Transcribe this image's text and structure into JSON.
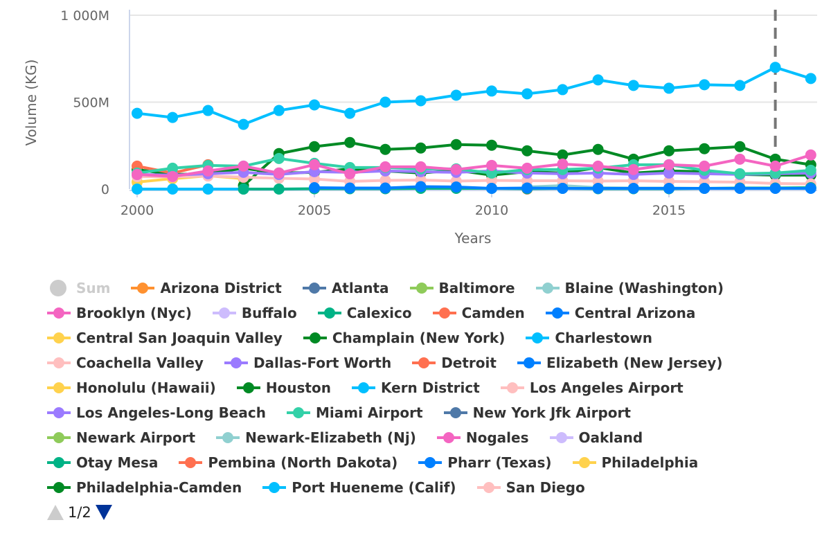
{
  "chart_data": {
    "type": "line",
    "title": "",
    "xlabel": "Years",
    "ylabel": "Volume (KG)",
    "x": [
      2000,
      2001,
      2002,
      2003,
      2004,
      2005,
      2006,
      2007,
      2008,
      2009,
      2010,
      2011,
      2012,
      2013,
      2014,
      2015,
      2016,
      2017,
      2018,
      2019
    ],
    "xlim": [
      2000,
      2019
    ],
    "ylim": [
      0,
      1000
    ],
    "y_unit": "M",
    "x_ticks": [
      "2000",
      "2005",
      "2010",
      "2015"
    ],
    "y_ticks": [
      {
        "v": 0,
        "label": "0"
      },
      {
        "v": 500,
        "label": "500M"
      },
      {
        "v": 1000,
        "label": "1 000M"
      }
    ],
    "plot_line_year": 2018,
    "legend_placement": "bottom",
    "legend_page": "1/2",
    "series": [
      {
        "name": "Sum",
        "color": "#cccccc",
        "visible": false,
        "values": null
      },
      {
        "name": "Arizona District",
        "color": "#ff9130",
        "values": null
      },
      {
        "name": "Atlanta",
        "color": "#4f79a8",
        "values": null
      },
      {
        "name": "Baltimore",
        "color": "#8fcb5a",
        "values": null
      },
      {
        "name": "Blaine (Washington)",
        "color": "#90d0d0",
        "values": [
          null,
          null,
          null,
          null,
          null,
          null,
          null,
          null,
          null,
          null,
          null,
          12,
          20,
          8,
          6,
          6,
          4,
          4,
          4,
          6
        ]
      },
      {
        "name": "Brooklyn (Nyc)",
        "color": "#f465c1",
        "values": null
      },
      {
        "name": "Buffalo",
        "color": "#cdbcfd",
        "values": null
      },
      {
        "name": "Calexico",
        "color": "#00b386",
        "values": null
      },
      {
        "name": "Camden",
        "color": "#ff7050",
        "values": [
          null,
          null,
          null,
          null,
          null,
          null,
          null,
          null,
          null,
          null,
          null,
          0,
          null,
          null,
          null,
          null,
          null,
          null,
          null,
          null
        ]
      },
      {
        "name": "Central Arizona",
        "color": "#0080ff",
        "values": null
      },
      {
        "name": "Central San Joaquin Valley",
        "color": "#ffd24d",
        "values": [
          null,
          null,
          0,
          0,
          null,
          null,
          null,
          null,
          null,
          null,
          null,
          null,
          null,
          null,
          null,
          null,
          null,
          null,
          null,
          null
        ]
      },
      {
        "name": "Champlain (New York)",
        "color": "#008a24",
        "values": [
          112,
          84,
          88,
          120,
          92,
          96,
          116,
          104,
          92,
          108,
          80,
          100,
          92,
          124,
          92,
          104,
          100,
          84,
          80,
          80
        ]
      },
      {
        "name": "Charlestown",
        "color": "#00bfff",
        "values": null
      },
      {
        "name": "Coachella Valley",
        "color": "#ffbfbf",
        "values": null
      },
      {
        "name": "Dallas-Fort Worth",
        "color": "#9b7bff",
        "values": null
      },
      {
        "name": "Detroit",
        "color": "#ff7050",
        "values": [
          132,
          92,
          140,
          null,
          null,
          null,
          null,
          null,
          null,
          null,
          null,
          null,
          null,
          null,
          null,
          null,
          null,
          null,
          null,
          null
        ]
      },
      {
        "name": "Elizabeth (New Jersey)",
        "color": "#0080ff",
        "values": null
      },
      {
        "name": "Honolulu (Hawaii)",
        "color": "#ffd24d",
        "values": [
          40,
          60,
          76,
          60,
          null,
          null,
          null,
          null,
          null,
          null,
          null,
          null,
          null,
          null,
          null,
          null,
          null,
          null,
          null,
          null
        ]
      },
      {
        "name": "Houston",
        "color": "#008a24",
        "values": [
          null,
          null,
          null,
          20,
          204,
          244,
          268,
          228,
          236,
          256,
          252,
          220,
          196,
          228,
          172,
          220,
          232,
          244,
          172,
          140
        ]
      },
      {
        "name": "Kern District",
        "color": "#00bfff",
        "values": [
          0,
          0,
          0,
          0,
          null,
          null,
          null,
          null,
          null,
          null,
          null,
          null,
          null,
          null,
          null,
          null,
          null,
          null,
          null,
          null
        ]
      },
      {
        "name": "Los Angeles Airport",
        "color": "#ffbfbf",
        "values": [
          72,
          70,
          75,
          68,
          62,
          58,
          44,
          50,
          52,
          46,
          50,
          48,
          48,
          46,
          48,
          44,
          42,
          40,
          32,
          30
        ]
      },
      {
        "name": "Los Angeles-Long Beach",
        "color": "#9b7bff",
        "values": [
          84,
          80,
          88,
          96,
          84,
          100,
          96,
          104,
          100,
          96,
          104,
          92,
          88,
          92,
          84,
          92,
          88,
          84,
          88,
          92
        ]
      },
      {
        "name": "Miami Airport",
        "color": "#33d1a8",
        "values": [
          92,
          120,
          136,
          132,
          176,
          148,
          124,
          124,
          116,
          116,
          92,
          112,
          112,
          120,
          140,
          140,
          108,
          88,
          92,
          108
        ]
      },
      {
        "name": "New York Jfk Airport",
        "color": "#4f79a8",
        "values": null
      },
      {
        "name": "Newark Airport",
        "color": "#8fcb5a",
        "values": null
      },
      {
        "name": "Newark-Elizabeth (Nj)",
        "color": "#90d0d0",
        "values": null
      },
      {
        "name": "Nogales",
        "color": "#f465c1",
        "values": [
          84,
          72,
          104,
          132,
          92,
          140,
          88,
          128,
          128,
          112,
          136,
          120,
          144,
          132,
          112,
          140,
          132,
          172,
          132,
          196
        ]
      },
      {
        "name": "Oakland",
        "color": "#cdbcfd",
        "values": null
      },
      {
        "name": "Otay Mesa",
        "color": "#00b386",
        "values": [
          null,
          null,
          null,
          0,
          0,
          2,
          2,
          2,
          4,
          4,
          4,
          2,
          4,
          2,
          2,
          2,
          4,
          6,
          6,
          8
        ]
      },
      {
        "name": "Pembina (North Dakota)",
        "color": "#ff7050",
        "values": null
      },
      {
        "name": "Pharr (Texas)",
        "color": "#0080ff",
        "values": [
          null,
          null,
          null,
          null,
          null,
          8,
          6,
          6,
          14,
          12,
          4,
          6,
          4,
          4,
          4,
          4,
          4,
          4,
          4,
          4
        ]
      },
      {
        "name": "Philadelphia",
        "color": "#ffd24d",
        "values": null
      },
      {
        "name": "Philadelphia-Camden",
        "color": "#008a24",
        "values": null
      },
      {
        "name": "Port Hueneme (Calif)",
        "color": "#00bfff",
        "values": [
          436,
          412,
          452,
          372,
          452,
          484,
          436,
          500,
          508,
          540,
          564,
          548,
          572,
          628,
          596,
          580,
          600,
          596,
          700,
          636
        ]
      },
      {
        "name": "San Diego",
        "color": "#ffbfbf",
        "values": null
      }
    ]
  }
}
